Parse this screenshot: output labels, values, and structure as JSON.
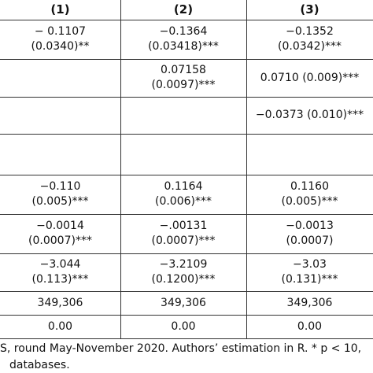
{
  "table": {
    "header": [
      "(1)",
      "(2)",
      "(3)"
    ],
    "rows": [
      [
        [
          "− 0.1107",
          "(0.0340)**"
        ],
        [
          "−0.1364",
          "(0.03418)***"
        ],
        [
          "−0.1352",
          "(0.0342)***"
        ]
      ],
      [
        [],
        [
          "0.07158",
          "(0.0097)***"
        ],
        [
          "0.0710 (0.009)***"
        ]
      ],
      [
        [],
        [],
        [
          "−0.0373 (0.010)***"
        ]
      ],
      [
        [],
        [],
        []
      ],
      [
        [
          "−0.110",
          "(0.005)***"
        ],
        [
          "0.1164",
          "(0.006)***"
        ],
        [
          "0.1160",
          "(0.005)***"
        ]
      ],
      [
        [
          "−0.0014",
          "(0.0007)***"
        ],
        [
          "−.00131",
          "(0.0007)***"
        ],
        [
          "−0.0013",
          "(0.0007)"
        ]
      ],
      [
        [
          "−3.044",
          "(0.113)***"
        ],
        [
          "−3.2109",
          "(0.1200)***"
        ],
        [
          "−3.03",
          "(0.131)***"
        ]
      ],
      [
        [
          "349,306"
        ],
        [
          "349,306"
        ],
        [
          "349,306"
        ]
      ],
      [
        [
          "0.00"
        ],
        [
          "0.00"
        ],
        [
          "0.00"
        ]
      ]
    ]
  },
  "note": [
    "S, round May-November 2020. Authors’ estimation in R. * p < 10,",
    "databases."
  ]
}
